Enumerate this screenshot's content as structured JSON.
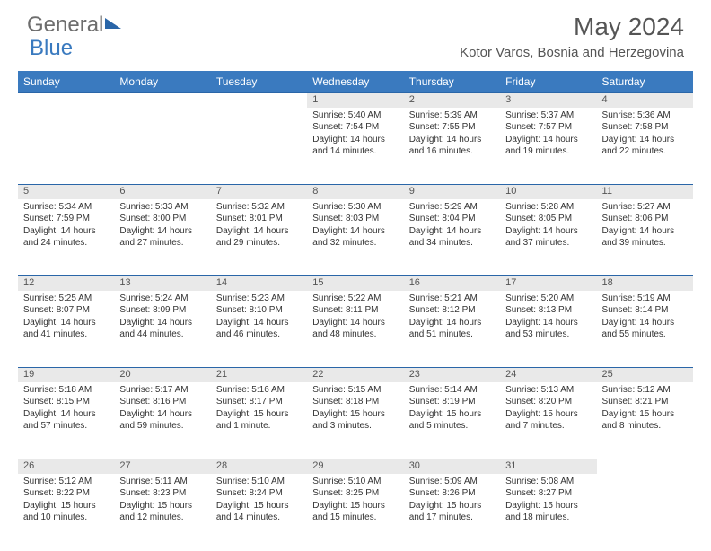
{
  "brand": {
    "part1": "General",
    "part2": "Blue"
  },
  "header": {
    "month_year": "May 2024",
    "location": "Kotor Varos, Bosnia and Herzegovina"
  },
  "colors": {
    "header_bg": "#3a7abf",
    "daynum_bg": "#e9e9e9",
    "border": "#2a66a8",
    "text": "#333333",
    "muted": "#555555"
  },
  "weekdays": [
    "Sunday",
    "Monday",
    "Tuesday",
    "Wednesday",
    "Thursday",
    "Friday",
    "Saturday"
  ],
  "weeks": [
    [
      null,
      null,
      null,
      {
        "d": "1",
        "sr": "Sunrise: 5:40 AM",
        "ss": "Sunset: 7:54 PM",
        "dl1": "Daylight: 14 hours",
        "dl2": "and 14 minutes."
      },
      {
        "d": "2",
        "sr": "Sunrise: 5:39 AM",
        "ss": "Sunset: 7:55 PM",
        "dl1": "Daylight: 14 hours",
        "dl2": "and 16 minutes."
      },
      {
        "d": "3",
        "sr": "Sunrise: 5:37 AM",
        "ss": "Sunset: 7:57 PM",
        "dl1": "Daylight: 14 hours",
        "dl2": "and 19 minutes."
      },
      {
        "d": "4",
        "sr": "Sunrise: 5:36 AM",
        "ss": "Sunset: 7:58 PM",
        "dl1": "Daylight: 14 hours",
        "dl2": "and 22 minutes."
      }
    ],
    [
      {
        "d": "5",
        "sr": "Sunrise: 5:34 AM",
        "ss": "Sunset: 7:59 PM",
        "dl1": "Daylight: 14 hours",
        "dl2": "and 24 minutes."
      },
      {
        "d": "6",
        "sr": "Sunrise: 5:33 AM",
        "ss": "Sunset: 8:00 PM",
        "dl1": "Daylight: 14 hours",
        "dl2": "and 27 minutes."
      },
      {
        "d": "7",
        "sr": "Sunrise: 5:32 AM",
        "ss": "Sunset: 8:01 PM",
        "dl1": "Daylight: 14 hours",
        "dl2": "and 29 minutes."
      },
      {
        "d": "8",
        "sr": "Sunrise: 5:30 AM",
        "ss": "Sunset: 8:03 PM",
        "dl1": "Daylight: 14 hours",
        "dl2": "and 32 minutes."
      },
      {
        "d": "9",
        "sr": "Sunrise: 5:29 AM",
        "ss": "Sunset: 8:04 PM",
        "dl1": "Daylight: 14 hours",
        "dl2": "and 34 minutes."
      },
      {
        "d": "10",
        "sr": "Sunrise: 5:28 AM",
        "ss": "Sunset: 8:05 PM",
        "dl1": "Daylight: 14 hours",
        "dl2": "and 37 minutes."
      },
      {
        "d": "11",
        "sr": "Sunrise: 5:27 AM",
        "ss": "Sunset: 8:06 PM",
        "dl1": "Daylight: 14 hours",
        "dl2": "and 39 minutes."
      }
    ],
    [
      {
        "d": "12",
        "sr": "Sunrise: 5:25 AM",
        "ss": "Sunset: 8:07 PM",
        "dl1": "Daylight: 14 hours",
        "dl2": "and 41 minutes."
      },
      {
        "d": "13",
        "sr": "Sunrise: 5:24 AM",
        "ss": "Sunset: 8:09 PM",
        "dl1": "Daylight: 14 hours",
        "dl2": "and 44 minutes."
      },
      {
        "d": "14",
        "sr": "Sunrise: 5:23 AM",
        "ss": "Sunset: 8:10 PM",
        "dl1": "Daylight: 14 hours",
        "dl2": "and 46 minutes."
      },
      {
        "d": "15",
        "sr": "Sunrise: 5:22 AM",
        "ss": "Sunset: 8:11 PM",
        "dl1": "Daylight: 14 hours",
        "dl2": "and 48 minutes."
      },
      {
        "d": "16",
        "sr": "Sunrise: 5:21 AM",
        "ss": "Sunset: 8:12 PM",
        "dl1": "Daylight: 14 hours",
        "dl2": "and 51 minutes."
      },
      {
        "d": "17",
        "sr": "Sunrise: 5:20 AM",
        "ss": "Sunset: 8:13 PM",
        "dl1": "Daylight: 14 hours",
        "dl2": "and 53 minutes."
      },
      {
        "d": "18",
        "sr": "Sunrise: 5:19 AM",
        "ss": "Sunset: 8:14 PM",
        "dl1": "Daylight: 14 hours",
        "dl2": "and 55 minutes."
      }
    ],
    [
      {
        "d": "19",
        "sr": "Sunrise: 5:18 AM",
        "ss": "Sunset: 8:15 PM",
        "dl1": "Daylight: 14 hours",
        "dl2": "and 57 minutes."
      },
      {
        "d": "20",
        "sr": "Sunrise: 5:17 AM",
        "ss": "Sunset: 8:16 PM",
        "dl1": "Daylight: 14 hours",
        "dl2": "and 59 minutes."
      },
      {
        "d": "21",
        "sr": "Sunrise: 5:16 AM",
        "ss": "Sunset: 8:17 PM",
        "dl1": "Daylight: 15 hours",
        "dl2": "and 1 minute."
      },
      {
        "d": "22",
        "sr": "Sunrise: 5:15 AM",
        "ss": "Sunset: 8:18 PM",
        "dl1": "Daylight: 15 hours",
        "dl2": "and 3 minutes."
      },
      {
        "d": "23",
        "sr": "Sunrise: 5:14 AM",
        "ss": "Sunset: 8:19 PM",
        "dl1": "Daylight: 15 hours",
        "dl2": "and 5 minutes."
      },
      {
        "d": "24",
        "sr": "Sunrise: 5:13 AM",
        "ss": "Sunset: 8:20 PM",
        "dl1": "Daylight: 15 hours",
        "dl2": "and 7 minutes."
      },
      {
        "d": "25",
        "sr": "Sunrise: 5:12 AM",
        "ss": "Sunset: 8:21 PM",
        "dl1": "Daylight: 15 hours",
        "dl2": "and 8 minutes."
      }
    ],
    [
      {
        "d": "26",
        "sr": "Sunrise: 5:12 AM",
        "ss": "Sunset: 8:22 PM",
        "dl1": "Daylight: 15 hours",
        "dl2": "and 10 minutes."
      },
      {
        "d": "27",
        "sr": "Sunrise: 5:11 AM",
        "ss": "Sunset: 8:23 PM",
        "dl1": "Daylight: 15 hours",
        "dl2": "and 12 minutes."
      },
      {
        "d": "28",
        "sr": "Sunrise: 5:10 AM",
        "ss": "Sunset: 8:24 PM",
        "dl1": "Daylight: 15 hours",
        "dl2": "and 14 minutes."
      },
      {
        "d": "29",
        "sr": "Sunrise: 5:10 AM",
        "ss": "Sunset: 8:25 PM",
        "dl1": "Daylight: 15 hours",
        "dl2": "and 15 minutes."
      },
      {
        "d": "30",
        "sr": "Sunrise: 5:09 AM",
        "ss": "Sunset: 8:26 PM",
        "dl1": "Daylight: 15 hours",
        "dl2": "and 17 minutes."
      },
      {
        "d": "31",
        "sr": "Sunrise: 5:08 AM",
        "ss": "Sunset: 8:27 PM",
        "dl1": "Daylight: 15 hours",
        "dl2": "and 18 minutes."
      },
      null
    ]
  ]
}
